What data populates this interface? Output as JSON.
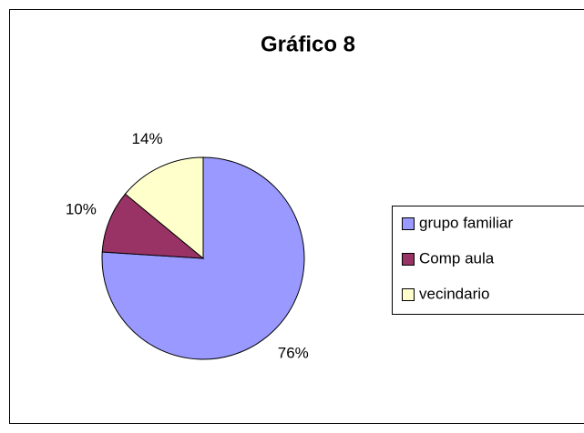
{
  "chart_data": {
    "type": "pie",
    "title": "Gráfico 8",
    "categories": [
      "grupo familiar",
      "Comp aula",
      "vecindario"
    ],
    "values": [
      76,
      10,
      14
    ],
    "value_labels": [
      "76%",
      "10%",
      "14%"
    ],
    "colors": [
      "#9999ff",
      "#993366",
      "#ffffcc"
    ],
    "legend": "right"
  }
}
